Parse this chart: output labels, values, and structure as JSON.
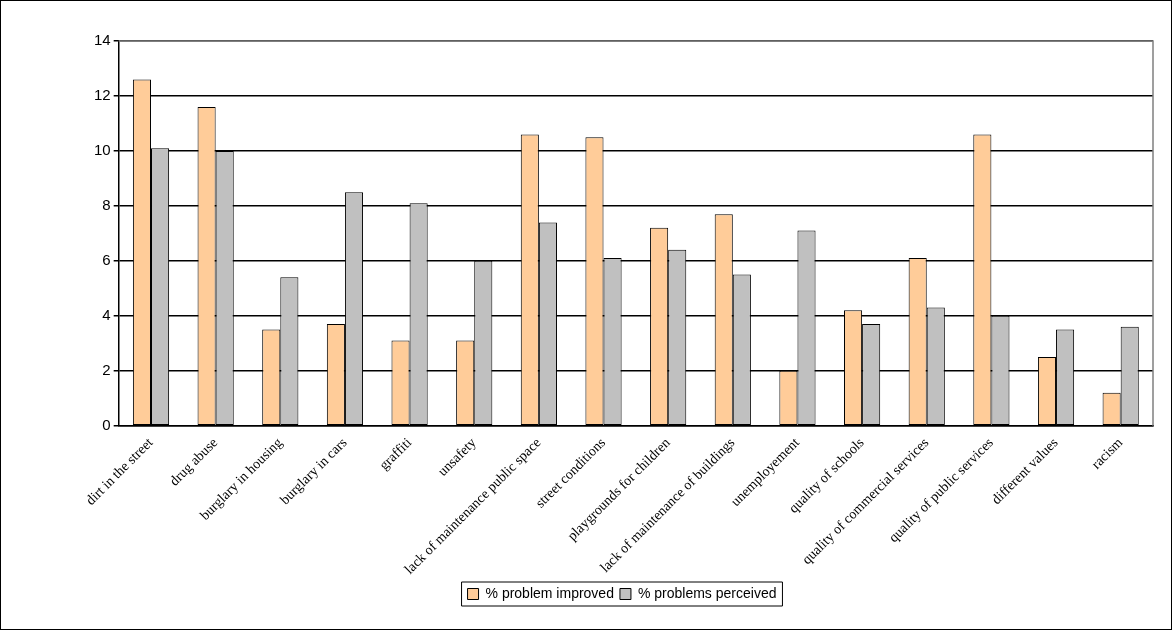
{
  "chart_data": {
    "type": "bar",
    "categories": [
      "dirt in the street",
      "drug abuse",
      "burglary in housing",
      "burglary in cars",
      "graffiti",
      "unsafety",
      "lack of maintenance public space",
      "street conditions",
      "playgrounds for children",
      "lack of maintenance of buildings",
      "unemployement",
      "quality of schools",
      "quality of commercial services",
      "quality of public services",
      "different values",
      "racism"
    ],
    "series": [
      {
        "name": "% problem improved",
        "color": "#ffcc99",
        "values": [
          12.6,
          11.6,
          3.5,
          3.7,
          3.1,
          3.1,
          10.6,
          10.5,
          7.2,
          7.7,
          2.0,
          4.2,
          6.1,
          10.6,
          2.5,
          1.2
        ]
      },
      {
        "name": "% problems perceived",
        "color": "#c0c0c0",
        "values": [
          10.1,
          10.0,
          5.4,
          8.5,
          8.1,
          6.0,
          7.4,
          6.1,
          6.4,
          5.5,
          7.1,
          3.7,
          4.3,
          4.0,
          3.5,
          3.6
        ]
      }
    ],
    "ylim": [
      0,
      14
    ],
    "yticks": [
      0,
      2,
      4,
      6,
      8,
      10,
      12,
      14
    ],
    "grid": "y",
    "legend": "bottom"
  }
}
